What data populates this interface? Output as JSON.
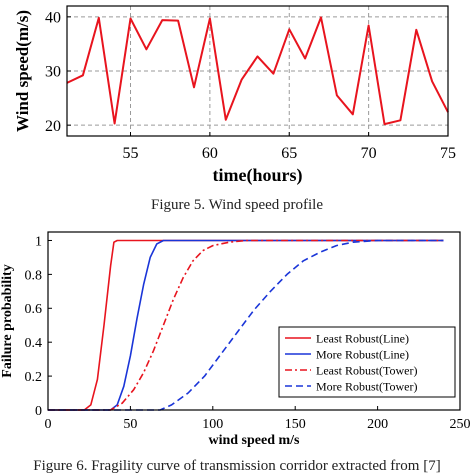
{
  "captions": {
    "fig5": "Figure 5. Wind speed profile",
    "fig6": "Figure 6. Fragility curve of transmission corridor extracted from [7]"
  },
  "chart_data": [
    {
      "type": "line",
      "title": "",
      "xlabel": "time(hours)",
      "ylabel": "Wind speed(m/s)",
      "xlim": [
        51,
        75
      ],
      "ylim": [
        18,
        42
      ],
      "xticks": [
        55,
        60,
        65,
        70,
        75
      ],
      "yticks": [
        20,
        30,
        40
      ],
      "grid": true,
      "series": [
        {
          "color": "#e8141e",
          "x": [
            51,
            52,
            53,
            54,
            55,
            56,
            57,
            58,
            59,
            60,
            61,
            62,
            63,
            64,
            65,
            66,
            67,
            68,
            69,
            70,
            71,
            72,
            73,
            74,
            75
          ],
          "y": [
            27.8,
            29.2,
            39.8,
            20.3,
            39.7,
            34.0,
            39.4,
            39.3,
            27.0,
            39.7,
            21.0,
            28.4,
            32.7,
            29.5,
            37.7,
            32.3,
            39.9,
            25.5,
            22.0,
            38.4,
            20.2,
            20.9,
            37.6,
            28.1,
            22.4
          ]
        }
      ]
    },
    {
      "type": "line",
      "title": "",
      "xlabel": "wind speed m/s",
      "ylabel": "Failure probability",
      "xlim": [
        0,
        250
      ],
      "ylim": [
        0,
        1.05
      ],
      "xticks": [
        0,
        50,
        100,
        150,
        200,
        250
      ],
      "yticks": [
        0,
        0.2,
        0.4,
        0.6,
        0.8,
        1
      ],
      "grid": false,
      "legend": "lower-right",
      "series": [
        {
          "name": "Least Robust(Line)",
          "color": "#e8141e",
          "dash": "solid",
          "x": [
            0,
            22,
            26,
            30,
            34,
            38,
            40,
            42,
            50,
            240
          ],
          "y": [
            0,
            0,
            0.03,
            0.18,
            0.5,
            0.85,
            0.99,
            1,
            1,
            1
          ]
        },
        {
          "name": "More Robust(Line)",
          "color": "#1a35d8",
          "dash": "solid",
          "x": [
            0,
            38,
            42,
            46,
            50,
            54,
            58,
            62,
            66,
            70,
            240
          ],
          "y": [
            0,
            0,
            0.03,
            0.14,
            0.32,
            0.54,
            0.74,
            0.9,
            0.98,
            1,
            1
          ]
        },
        {
          "name": "Least Robust(Tower)",
          "color": "#e8141e",
          "dash": "dashdot",
          "x": [
            0,
            38,
            45,
            52,
            58,
            64,
            70,
            76,
            82,
            88,
            94,
            100,
            110,
            120,
            240
          ],
          "y": [
            0,
            0,
            0.04,
            0.12,
            0.22,
            0.35,
            0.5,
            0.65,
            0.78,
            0.88,
            0.94,
            0.97,
            0.99,
            1,
            1
          ]
        },
        {
          "name": "More Robust(Tower)",
          "color": "#1a35d8",
          "dash": "dashed",
          "x": [
            0,
            68,
            75,
            85,
            95,
            105,
            115,
            125,
            135,
            145,
            155,
            165,
            175,
            185,
            200,
            240
          ],
          "y": [
            0,
            0,
            0.03,
            0.1,
            0.2,
            0.33,
            0.46,
            0.59,
            0.7,
            0.8,
            0.88,
            0.93,
            0.97,
            0.99,
            1,
            1
          ]
        }
      ]
    }
  ]
}
